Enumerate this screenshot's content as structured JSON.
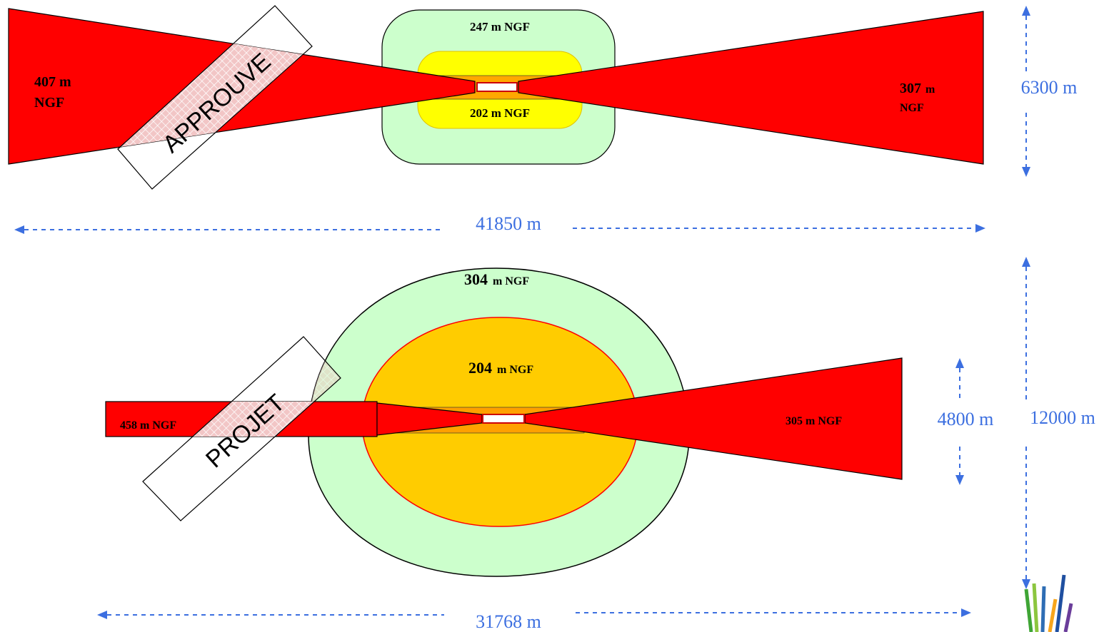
{
  "approved_plan": {
    "outer_zone_label": {
      "value": "247 m",
      "unit": "NGF"
    },
    "inner_zone_label": {
      "value": "202 m",
      "unit": "NGF"
    },
    "west_cone_label": {
      "line1": "407 m",
      "line2": "NGF"
    },
    "east_cone_label": {
      "value": "307",
      "unit1": "m",
      "unit2": "NGF"
    },
    "stamp": "APPROUVE",
    "width_dimension": "6300 m",
    "length_dimension": "41850 m"
  },
  "project_plan": {
    "outer_zone_label": {
      "value": "304",
      "unit": "m NGF"
    },
    "inner_zone_label": {
      "value": "204",
      "unit": "m NGF"
    },
    "west_strip_label": "458 m NGF",
    "east_cone_label": "305 m NGF",
    "stamp": "PROJET",
    "cone_width_dimension": "4800 m",
    "width_dimension": "12000 m",
    "length_dimension": "31768 m"
  },
  "colors": {
    "red": "#ff0000",
    "light_green": "#ccffcc",
    "yellow": "#ffff00",
    "orange": "#ffcc00",
    "dimension_blue": "#3c6fe0",
    "runway": "#ffffff"
  },
  "logo": "colorful-stripes-logo"
}
